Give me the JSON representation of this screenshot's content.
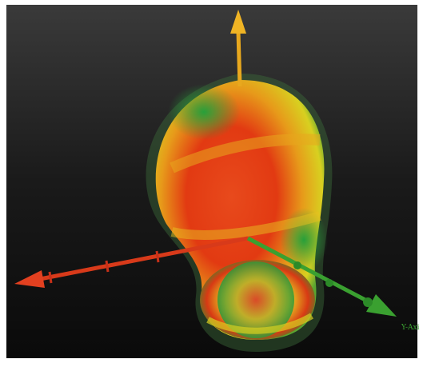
{
  "labels": {
    "y_axis": "Y-Axi"
  }
}
